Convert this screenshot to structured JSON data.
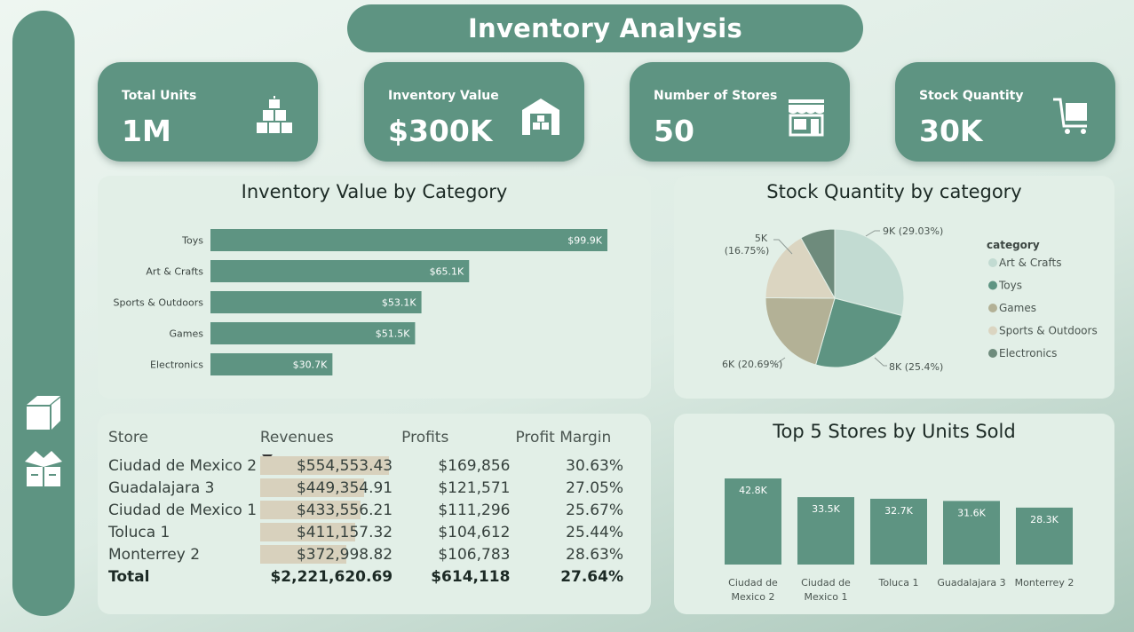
{
  "header": {
    "title": "Inventory Analysis"
  },
  "sidebar": {
    "icons": [
      "box-icon",
      "open-box-icon"
    ]
  },
  "kpis": [
    {
      "label": "Total Units",
      "value": "1M",
      "icon": "boxes-stack-icon"
    },
    {
      "label": "Inventory Value",
      "value": "$300K",
      "icon": "warehouse-icon"
    },
    {
      "label": "Number of Stores",
      "value": "50",
      "icon": "store-icon"
    },
    {
      "label": "Stock Quantity",
      "value": "30K",
      "icon": "cart-icon"
    }
  ],
  "value_chart": {
    "title": "Inventory Value by Category",
    "bar_color": "#5e9482"
  },
  "pie_chart": {
    "title": "Stock Quantity by category",
    "legend_title": "category"
  },
  "units_chart": {
    "title": "Top 5 Stores by Units Sold",
    "bar_color": "#5e9482"
  },
  "store_table": {
    "headers": [
      "Store",
      "Revenues",
      "Profits",
      "Profit Margin"
    ],
    "rows": [
      {
        "store": "Ciudad de Mexico 2",
        "revenue": "$554,553.43",
        "profit": "$169,856",
        "margin": "30.63%",
        "rev_share": 1.0
      },
      {
        "store": "Guadalajara 3",
        "revenue": "$449,354.91",
        "profit": "$121,571",
        "margin": "27.05%",
        "rev_share": 0.81
      },
      {
        "store": "Ciudad de Mexico 1",
        "revenue": "$433,556.21",
        "profit": "$111,296",
        "margin": "25.67%",
        "rev_share": 0.78
      },
      {
        "store": "Toluca 1",
        "revenue": "$411,157.32",
        "profit": "$104,612",
        "margin": "25.44%",
        "rev_share": 0.74
      },
      {
        "store": "Monterrey 2",
        "revenue": "$372,998.82",
        "profit": "$106,783",
        "margin": "28.63%",
        "rev_share": 0.67
      }
    ],
    "total": {
      "label": "Total",
      "revenue": "$2,221,620.69",
      "profit": "$614,118",
      "margin": "27.64%"
    },
    "rev_bar_color": "#d8d1bd"
  },
  "chart_data": [
    {
      "type": "bar",
      "orientation": "horizontal",
      "title": "Inventory Value by Category",
      "categories": [
        "Toys",
        "Art & Crafts",
        "Sports & Outdoors",
        "Games",
        "Electronics"
      ],
      "values": [
        99.9,
        65.1,
        53.1,
        51.5,
        30.7
      ],
      "labels": [
        "$99.9K",
        "$65.1K",
        "$53.1K",
        "$51.5K",
        "$30.7K"
      ]
    },
    {
      "type": "pie",
      "title": "Stock Quantity by category",
      "legend_title": "category",
      "categories": [
        "Art & Crafts",
        "Toys",
        "Games",
        "Sports & Outdoors",
        "Electronics"
      ],
      "percents": [
        29.03,
        25.4,
        20.69,
        16.75,
        8.13
      ],
      "labels": [
        "9K (29.03%)",
        "8K (25.4%)",
        "6K (20.69%)",
        "5K (16.75%)",
        ""
      ],
      "colors": [
        "#c2dbd2",
        "#5e9482",
        "#b3b196",
        "#dbd5c1",
        "#6e8b7c"
      ],
      "legend_placement": "right"
    },
    {
      "type": "bar",
      "title": "Top 5 Stores by Units Sold",
      "categories": [
        "Ciudad de Mexico 2",
        "Ciudad de Mexico 1",
        "Toluca 1",
        "Guadalajara 3",
        "Monterrey 2"
      ],
      "category_lines": [
        [
          "Ciudad de",
          "Mexico 2"
        ],
        [
          "Ciudad de",
          "Mexico 1"
        ],
        [
          "Toluca 1"
        ],
        [
          "Guadalajara 3"
        ],
        [
          "Monterrey 2"
        ]
      ],
      "values": [
        42.8,
        33.5,
        32.7,
        31.6,
        28.3
      ],
      "labels": [
        "42.8K",
        "33.5K",
        "32.7K",
        "31.6K",
        "28.3K"
      ]
    }
  ]
}
